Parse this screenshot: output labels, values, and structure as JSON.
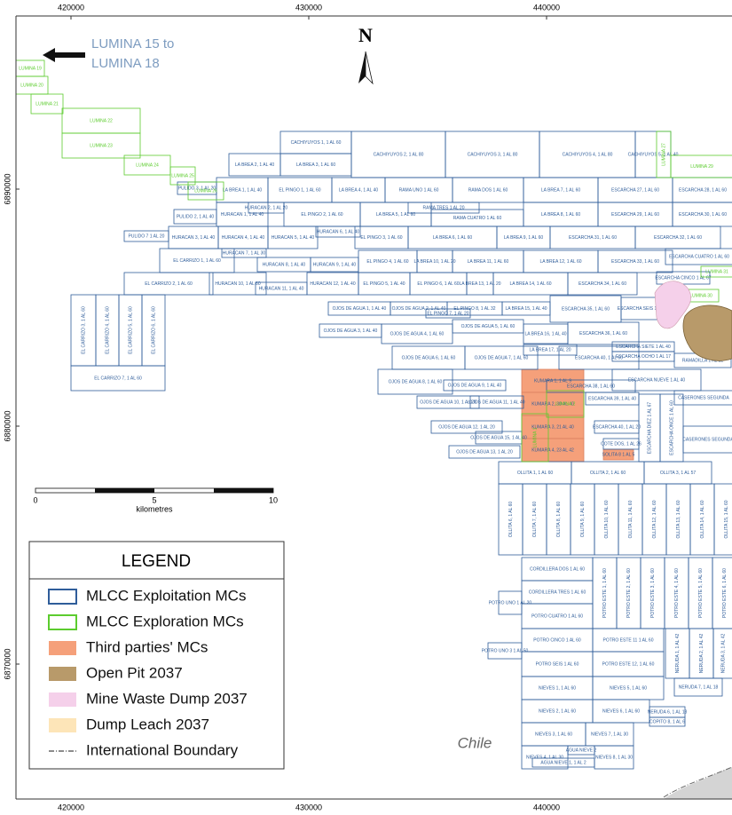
{
  "map": {
    "x_labels": [
      "420000",
      "430000",
      "440000"
    ],
    "y_labels": [
      "6890000",
      "6880000",
      "6870000"
    ],
    "north": "N",
    "annotation": [
      "LUMINA 15 to",
      "LUMINA 18"
    ],
    "country": "Chile",
    "scale_bar": {
      "labels": [
        "0",
        "5",
        "10"
      ],
      "unit": "kilometres"
    },
    "legend": {
      "title": "LEGEND",
      "items": [
        {
          "label": "MLCC Exploitation MCs",
          "swatch": "outline",
          "color": "#2f5d9a"
        },
        {
          "label": "MLCC Exploration MCs",
          "swatch": "outline",
          "color": "#5ccc2e"
        },
        {
          "label": "Third parties' MCs",
          "swatch": "fill",
          "color": "#f5a07a"
        },
        {
          "label": "Open Pit 2037",
          "swatch": "fill",
          "color": "#b89a6a"
        },
        {
          "label": "Mine Waste Dump 2037",
          "swatch": "fill",
          "color": "#f5d0ea"
        },
        {
          "label": "Dump Leach 2037",
          "swatch": "fill",
          "color": "#fde5b8"
        },
        {
          "label": "International Boundary",
          "swatch": "dashed",
          "color": "#666666"
        }
      ]
    },
    "claims": {
      "exploitation": [
        "CACHIYUYOS 1, 1 AL 60",
        "LA BREA 3, 1 AL 60",
        "LA BREA 2, 1 AL 40",
        "CACHIYUYOS 2, 1 AL 80",
        "CACHIYUYOS 3, 1 AL 80",
        "CACHIYUYOS 4, 1 AL 80",
        "CACHIYUYOS 5, 1 AL 40",
        "LA BREA 1, 1 AL 40",
        "EL PINGO 1, 1 AL 60",
        "LA BREA 4, 1 AL 40",
        "RAMA UNO 1 AL 60",
        "RAMA DOS 1 AL 60",
        "LA BREA 7, 1 AL 60",
        "ESCARCHA 27, 1 AL 60",
        "ESCARCHA 28, 1 AL 60",
        "PULIDO 3, 1 AL 20",
        "PULIDO 2, 1 AL 40",
        "HURACAN 1, 1 AL 40",
        "HURACAN 2, 1 AL 20",
        "EL PINGO 2, 1 AL 60",
        "LA BREA 5, 1 AL 60",
        "RAMA TRES 1 AL 20",
        "RAMA CUATRO 1 AL 60",
        "LA BREA 8, 1 AL 60",
        "ESCARCHA 29, 1 AL 60",
        "ESCARCHA 30, 1 AL 60",
        "PULIDO 7 1 AL 20",
        "HURACAN 3, 1 AL 40",
        "HURACAN 4, 1 AL 40",
        "HURACAN 5, 1 AL 40",
        "HURACAN 6, 1 AL 40",
        "EL PINGO 3, 1 AL 60",
        "LA BREA 6, 1 AL 60",
        "LA BREA 9, 1 AL 60",
        "ESCARCHA 31, 1 AL 60",
        "ESCARCHA 32, 1 AL 60",
        "EL CARRIZO 1, 1 AL 60",
        "HURACAN 7, 1 AL 30",
        "HURACAN 8, 1 AL 40",
        "HURACAN 9, 1 AL 40",
        "EL PINGO 4, 1 AL 60",
        "LA BREA 10, 1 AL 20",
        "LA BREA 11, 1 AL 60",
        "LA BREA 12, 1 AL 60",
        "ESCARCHA 33, 1 AL 60",
        "ESCARCHA CUATRO 1 AL 60",
        "EL CARRIZO 2, 1 AL 60",
        "HURACAN 10, 1 AL 60",
        "HURACAN 11, 1 AL 40",
        "HURACAN 12, 1 AL 40",
        "EL PINGO 5, 1 AL 40",
        "EL PINGO 6, 1 AL 60",
        "LA BREA 13, 1 AL 20",
        "LA BREA 14, 1 AL 60",
        "ESCARCHA 34, 1 AL 60",
        "ESCARCHA CINCO 1 AL 67",
        "EL CARRIZO 3, 1 AL 60",
        "EL CARRIZO 4, 1 AL 60",
        "EL CARRIZO 5, 1 AL 60",
        "EL CARRIZO 6, 1 AL 60",
        "EL CARRIZO 7, 1 AL 60",
        "OJOS DE AGUA 1, 1 AL 40",
        "OJOS DE AGUA 2, 1 AL 40",
        "EL PINGO 7, 1 AL 20",
        "EL PINGO 8, 1 AL 32",
        "LA BREA 15, 1 AL 40",
        "ESCARCHA 35, 1 AL 60",
        "ESCARCHA SEIS 1 AL 67",
        "OJOS DE AGUA 3, 1 AL 40",
        "OJOS DE AGUA 4, 1 AL 60",
        "OJOS DE AGUA 5, 1 AL 60",
        "LA BREA 16, 1 AL 40",
        "ESCARCHA 36, 1 AL 60",
        "LA BREA 17, 1 AL 20",
        "ESCARCHA SIETE 1 AL 40",
        "ESCARCHA OCHO 1 AL 17",
        "OJOS DE AGUA 6, 1 AL 60",
        "OJOS DE AGUA 7, 1 AL 60",
        "ESCARCHA 40, 1 AL 60",
        "RAMADILLA 1 AL 12",
        "OJOS DE AGUA 8, 1 AL 60",
        "OJOS DE AGUA 9, 1 AL 40",
        "ESCARCHA 38, 1 AL 60",
        "ESCARCHA NUEVE 1 AL 40",
        "CASERONES SEGUNDA",
        "OJOS DE AGUA 10, 1 AL 20",
        "OJOS DE AGUA 11, 1 AL 40",
        "ESCARCHA 39, 1 AL 40",
        "OJOS DE AGUA 12, 1 AL 20",
        "OJOS DE AGUA 15, 1 AL 40",
        "OJOS DE AGUA 13, 1 AL 20",
        "ESCARCHA 40, 1 AL 20",
        "ESCARCHA DIEZ 1 AL 67",
        "ESCARCHA ONCE 1 AL 60",
        "CASERONES SEGUNDA",
        "COTE DOS, 1 AL 26",
        "OLLITA 1, 1 AL 60",
        "OLLITA 2, 1 AL 60",
        "OLLITA 3, 1 AL 57",
        "OLLITA 6, 1 AL 60",
        "OLLITA 7, 1 AL 60",
        "OLLITA 8, 1 AL 60",
        "OLLITA 9, 1 AL 60",
        "OLLITA 10, 1 AL 60",
        "OLLITA 11, 1 AL 60",
        "OLLITA 12, 1 AL 60",
        "OLLITA 13, 1 AL 60",
        "OLLITA 14, 1 AL 60",
        "OLLITA 15, 1 AL 60",
        "CORDILLERA DOS 1 AL 60",
        "CORDILLERA TRES 1 AL 60",
        "POTRO UNO 1 AL 20",
        "POTRO CUATRO 1 AL 60",
        "POTRO ESTE 1, 1 AL 60",
        "POTRO ESTE 2, 1 AL 60",
        "POTRO ESTE 3, 1 AL 60",
        "POTRO ESTE 4, 1 AL 60",
        "POTRO ESTE 5, 1 AL 60",
        "POTRO ESTE 6, 1 AL 60",
        "POTRO CINCO 1 AL 60",
        "POTRO ESTE 11 1 AL 60",
        "POTRO UNO 3 1 AL 50",
        "POTRO SEIS 1 AL 60",
        "POTRO ESTE 12, 1 AL 60",
        "NERUDA 1, 1 AL 42",
        "NERUDA 2, 1 AL 42",
        "NERUDA 3, 1 AL 42",
        "NIEVES 1, 1 AL 60",
        "NIEVES 5, 1 AL 60",
        "NERUDA 7, 1 AL 18",
        "NIEVES 2, 1 AL 60",
        "NIEVES 6, 1 AL 60",
        "NERUDA 6, 1 AL 18",
        "COPITO 8, 1 AL 6",
        "NIEVES 3, 1 AL 60",
        "NIEVES 7, 1 AL 30",
        "NIEVES 4, 1 AL 30",
        "AGUA NIEVE 2",
        "AGUA NIEVE 1, 1 AL 2",
        "NIEVES 8, 1 AL 30"
      ],
      "exploration": [
        "LUMINA 19",
        "LUMINA 20",
        "LUMINA 21",
        "LUMINA 22",
        "LUMINA 23",
        "LUMINA 24",
        "LUMINA 25",
        "LUMINA 26",
        "LUMINA 27",
        "LUMINA 29",
        "LUMINA 1",
        "LUMINA 2",
        "LUMINA 30",
        "LUMINA 31"
      ],
      "third_parties": [
        "KUMARA 1, 1 AL 9",
        "KUMARA 2, 30 AL 40",
        "KUMARA 3, 21 AL 40",
        "KUMARA 4, 23 AL 42",
        "SOLITA 8 1 AL 5"
      ]
    }
  }
}
